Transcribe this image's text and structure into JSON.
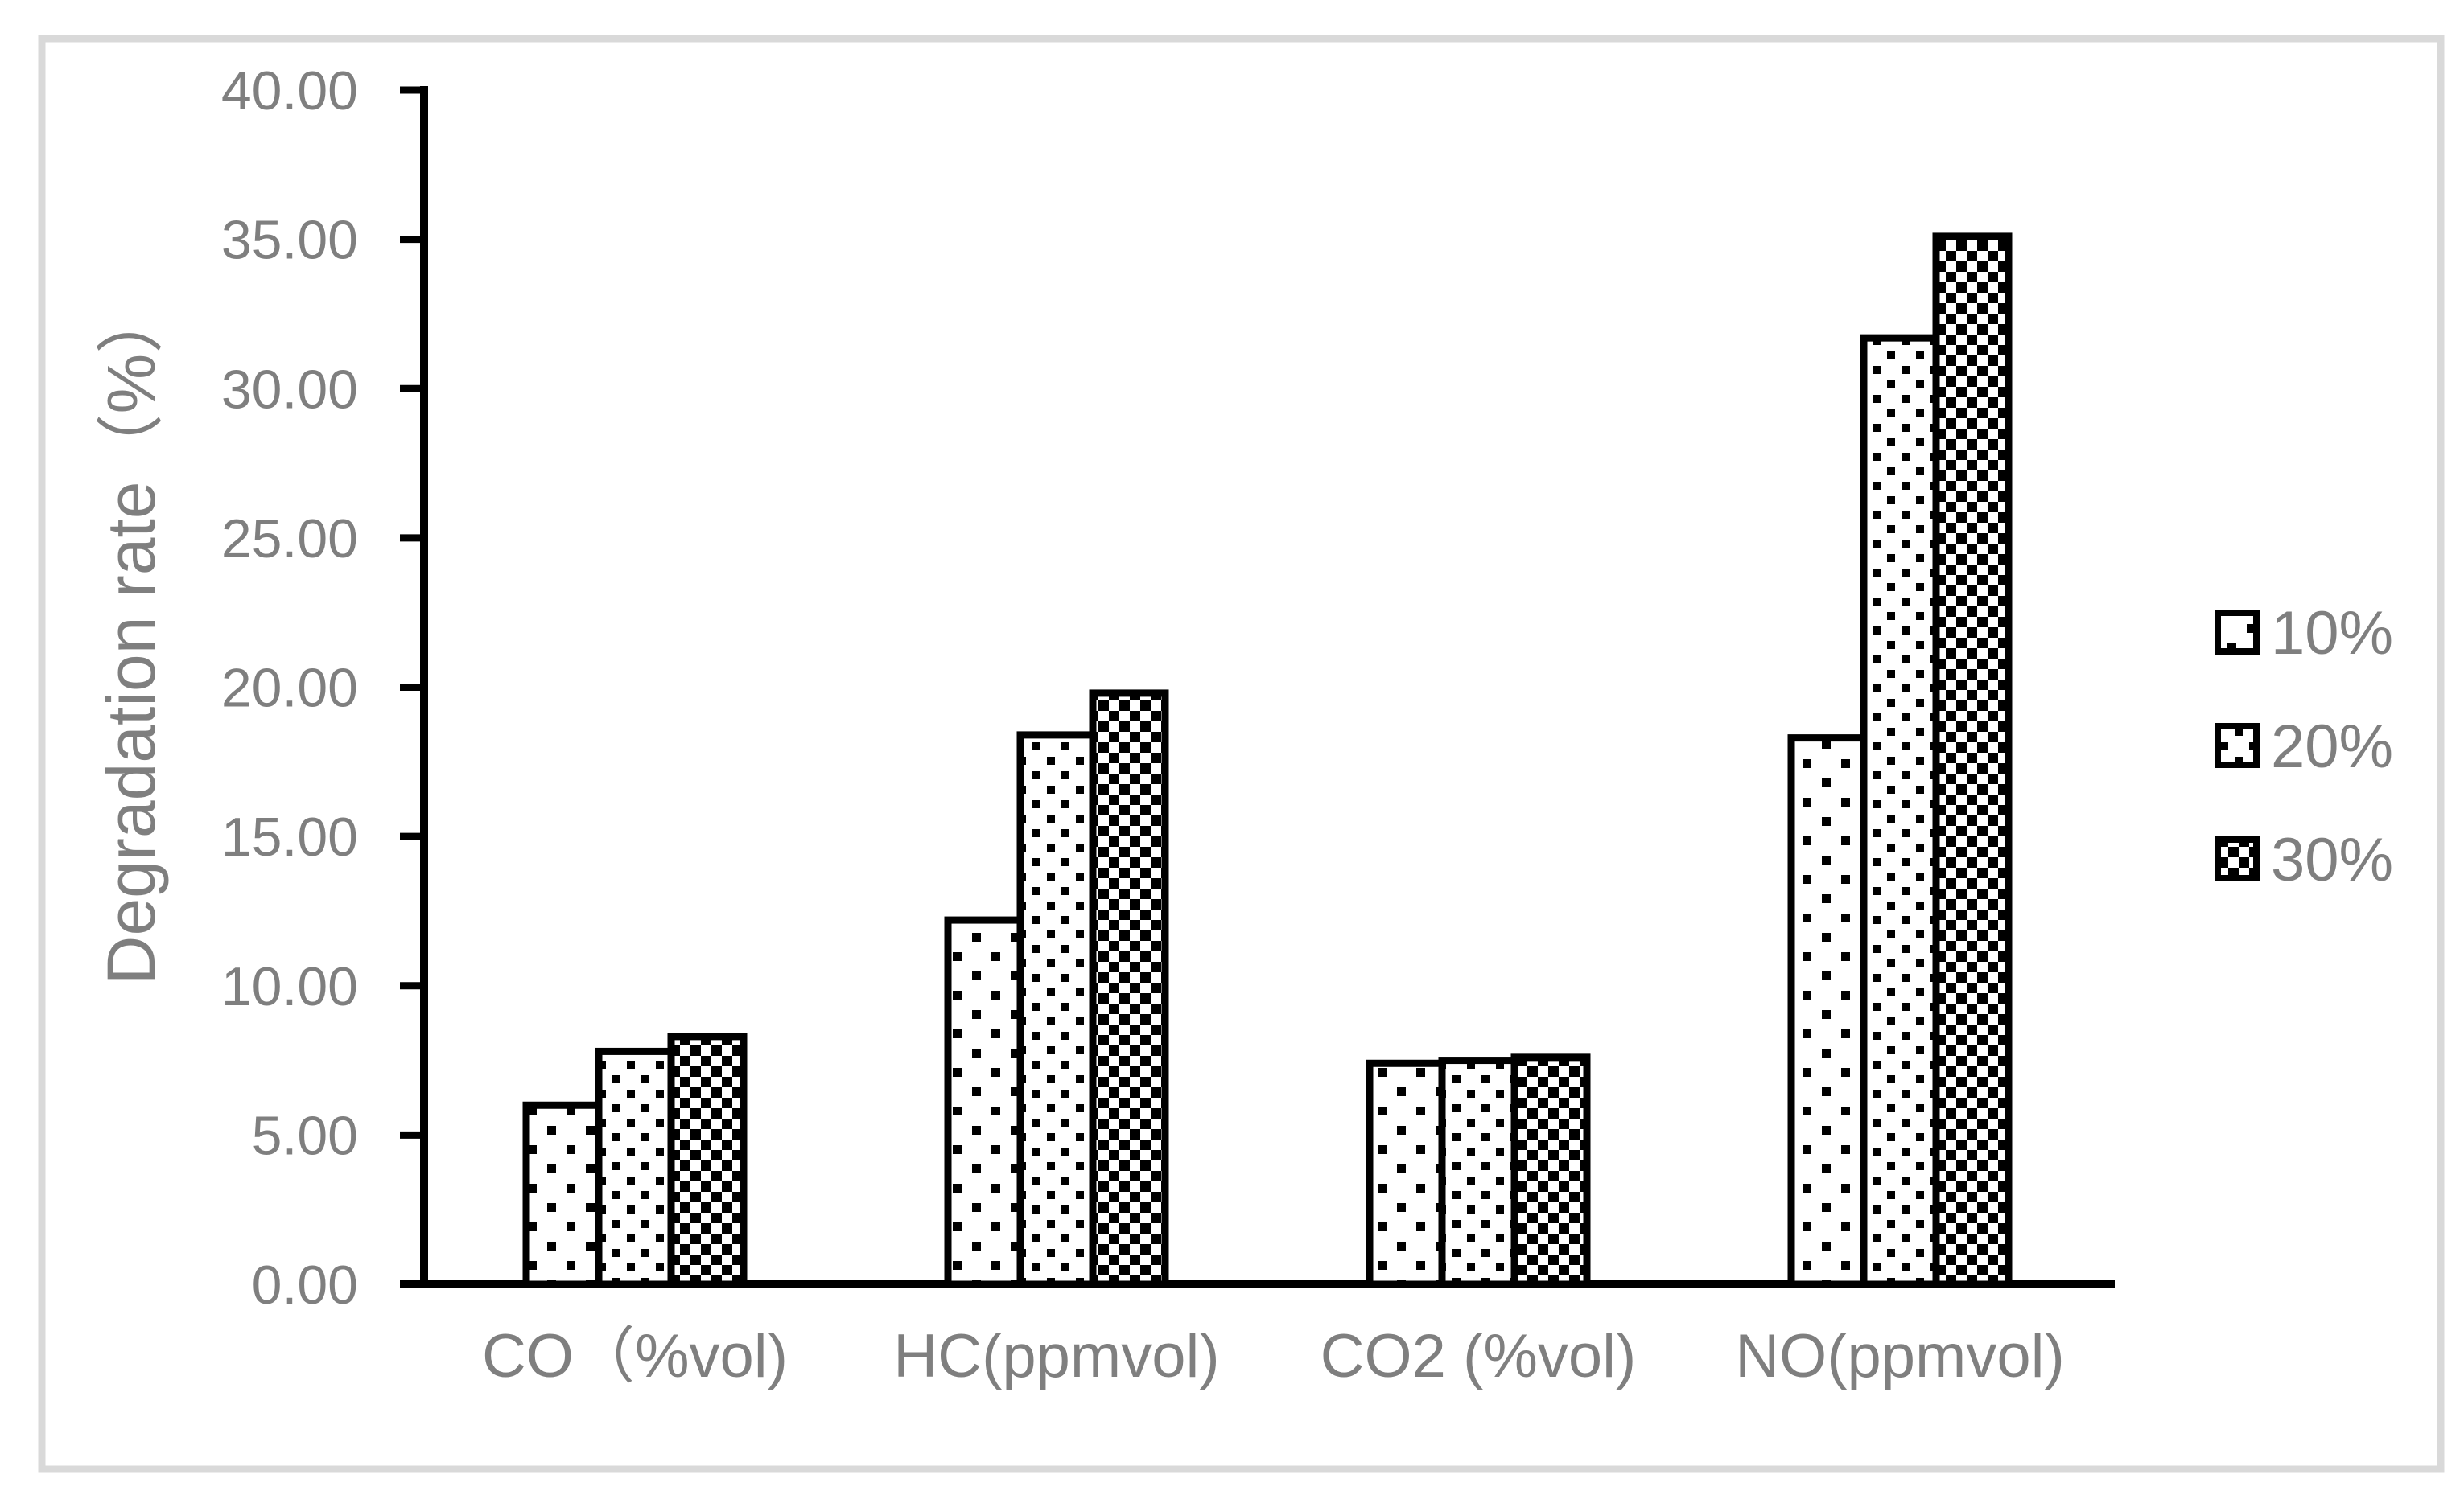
{
  "chart_data": {
    "type": "bar",
    "title": "",
    "xlabel": "",
    "ylabel": "Degradation rate（%）",
    "ylim": [
      0,
      40
    ],
    "ytick_step": 5,
    "ytick_labels": [
      "0.00",
      "5.00",
      "10.00",
      "15.00",
      "20.00",
      "25.00",
      "30.00",
      "35.00",
      "40.00"
    ],
    "categories": [
      "CO（%vol)",
      "HC(ppmvol)",
      "CO2 (%vol)",
      "NO(ppmvol)"
    ],
    "series": [
      {
        "name": "10%",
        "pattern": "sparse-dots",
        "values": [
          6.0,
          12.2,
          7.4,
          18.3
        ]
      },
      {
        "name": "20%",
        "pattern": "dense-dots",
        "values": [
          7.8,
          18.4,
          7.5,
          31.7
        ]
      },
      {
        "name": "30%",
        "pattern": "checker",
        "values": [
          8.3,
          19.8,
          7.6,
          35.1
        ]
      }
    ],
    "legend_position": "right",
    "legend_labels": [
      "10%",
      "20%",
      "30%"
    ],
    "grid": false
  },
  "colors": {
    "text_gray": "#7f7f7f",
    "axis_black": "#000000",
    "bar_fill_white": "#ffffff",
    "pattern_black": "#000000",
    "frame_border_gray": "#d9d9d9",
    "background": "#ffffff"
  }
}
